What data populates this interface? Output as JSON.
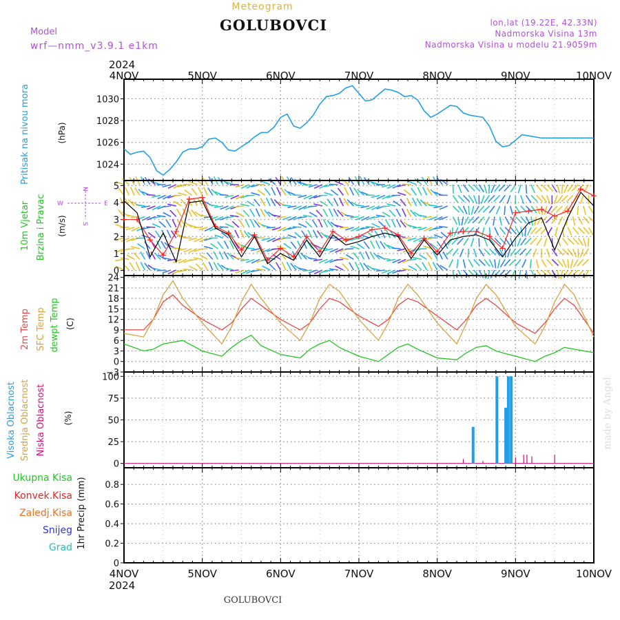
{
  "header": {
    "subtitle": "Meteogram",
    "title": "GOLUBOVCI",
    "model_label": "Model",
    "model_value": "wrf—nmm_v3.9.1 e1km",
    "coords": "lon,lat (19.22E, 42.33N)",
    "altitude": "Nadmorska Visina 13m",
    "model_altitude": "Nadmorska Visina u modelu 21.9059m",
    "year_top": "2024",
    "year_bottom": "2024",
    "footer_station": "GOLUBOVCI",
    "watermark": "made by Angel"
  },
  "colors": {
    "pressure": "#1fa0e6",
    "wind_speed": "#000000",
    "gust": "#ff2020",
    "t2m": "#ee4444",
    "sfc": "#d9a040",
    "dew": "#22c422",
    "cloud_high": "#1fa0e6",
    "cloud_low": "#d01070",
    "grid": "#888888"
  },
  "days": [
    "4NOV",
    "5NOV",
    "6NOV",
    "7NOV",
    "8NOV",
    "9NOV",
    "10NOV"
  ],
  "chart_data": [
    {
      "type": "line",
      "name": "pressure",
      "ylabel": [
        "Pritisak na nivou mora",
        "(hPa)"
      ],
      "yticks": [
        1024,
        1026,
        1028,
        1030
      ],
      "ylim": [
        1022.5,
        1031.8
      ],
      "x": [
        0,
        2,
        4,
        6,
        8,
        10,
        12,
        14,
        16,
        18,
        20,
        22,
        24,
        26,
        28,
        30,
        32,
        34,
        36,
        38,
        40,
        42,
        44,
        46,
        48,
        50,
        52,
        54,
        56,
        58,
        60,
        62,
        64,
        66,
        68,
        70,
        72,
        74,
        76,
        78,
        80,
        82,
        84,
        86,
        88,
        90,
        92,
        94,
        96,
        98,
        100,
        102,
        104,
        106,
        108,
        110,
        112,
        114,
        116,
        118,
        120,
        122,
        124,
        126,
        128,
        130,
        132,
        134,
        136,
        138,
        140,
        142,
        144
      ],
      "series": [
        {
          "values": [
            1025.4,
            1024.9,
            1025.1,
            1025.2,
            1024.6,
            1023.4,
            1023.0,
            1023.5,
            1024.2,
            1025.1,
            1025.4,
            1025.4,
            1025.6,
            1026.3,
            1026.4,
            1026.0,
            1025.3,
            1025.2,
            1025.6,
            1026.0,
            1026.5,
            1026.9,
            1026.9,
            1027.4,
            1028.3,
            1028.6,
            1027.5,
            1027.3,
            1027.8,
            1028.5,
            1029.5,
            1030.2,
            1030.3,
            1030.5,
            1031.0,
            1031.2,
            1030.5,
            1029.8,
            1029.9,
            1030.4,
            1030.9,
            1030.8,
            1030.6,
            1030.2,
            1030.3,
            1029.9,
            1028.9,
            1028.3,
            1028.6,
            1029.0,
            1029.4,
            1029.3,
            1028.7,
            1028.5,
            1028.4,
            1028.3,
            1027.5,
            1026.1,
            1025.6,
            1025.7,
            1026.2,
            1026.7,
            1026.6,
            1026.5,
            1026.4,
            1026.4,
            1026.4,
            1026.4,
            1026.4,
            1026.4,
            1026.4,
            1026.4,
            1026.4
          ]
        }
      ]
    },
    {
      "type": "line",
      "name": "wind",
      "ylabel": [
        "10m Vjetar",
        "Brzina i Pravac",
        "(m/s)"
      ],
      "yticks": [
        0,
        1,
        2,
        3,
        4,
        5
      ],
      "ylim": [
        -0.3,
        5.3
      ],
      "x": [
        0,
        4,
        8,
        12,
        16,
        20,
        24,
        28,
        32,
        36,
        40,
        44,
        48,
        52,
        56,
        60,
        64,
        68,
        72,
        76,
        80,
        84,
        88,
        92,
        96,
        100,
        104,
        108,
        112,
        116,
        120,
        124,
        128,
        132,
        136,
        140,
        144
      ],
      "series": [
        {
          "values": [
            4.1,
            3.4,
            0.8,
            2.2,
            0.5,
            4.0,
            4.1,
            2.5,
            2.1,
            0.8,
            2.0,
            0.4,
            1.0,
            0.6,
            1.8,
            0.8,
            2.1,
            1.5,
            1.7,
            2.0,
            2.2,
            2.0,
            0.7,
            1.8,
            0.9,
            1.8,
            2.0,
            2.1,
            1.8,
            0.8,
            1.9,
            2.8,
            3.1,
            1.2,
            3.1,
            4.6,
            3.8
          ]
        },
        {
          "values": [
            3.0,
            3.0,
            1.8,
            0.9,
            2.3,
            4.2,
            4.3,
            2.6,
            2.2,
            1.2,
            2.1,
            0.6,
            1.3,
            0.8,
            2.0,
            1.1,
            2.3,
            1.8,
            2.0,
            2.4,
            2.5,
            2.1,
            1.0,
            1.9,
            1.1,
            2.2,
            2.3,
            2.3,
            2.0,
            1.3,
            3.4,
            3.5,
            3.6,
            3.2,
            3.5,
            4.8,
            4.4
          ]
        }
      ],
      "direction_labels": [
        "N",
        "W",
        "E",
        "S"
      ]
    },
    {
      "type": "line",
      "name": "temperature",
      "ylabel": [
        "2m Temp",
        "SFC Temp",
        "dewpt Temp",
        "(C)"
      ],
      "yticks": [
        -3,
        0,
        3,
        6,
        9,
        12,
        15,
        18,
        21,
        24
      ],
      "ylim": [
        -3,
        24.5
      ],
      "x": [
        0,
        6,
        9,
        12,
        15,
        18,
        24,
        30,
        33,
        36,
        39,
        42,
        48,
        54,
        57,
        60,
        63,
        66,
        72,
        78,
        81,
        84,
        87,
        90,
        96,
        102,
        105,
        108,
        111,
        114,
        120,
        126,
        129,
        132,
        135,
        138,
        144
      ],
      "series": [
        {
          "name": "2m Temp",
          "values": [
            9,
            9,
            12,
            17,
            19,
            16,
            12,
            9,
            11,
            15,
            18,
            16,
            12,
            9,
            11,
            15,
            18,
            17,
            13,
            10,
            12,
            16,
            18,
            17,
            13,
            9,
            12,
            16,
            18,
            16,
            11,
            8,
            11,
            15,
            18,
            16,
            8
          ]
        },
        {
          "name": "SFC Temp",
          "values": [
            8,
            7,
            12,
            19,
            23,
            18,
            11,
            5,
            10,
            17,
            22,
            18,
            11,
            6,
            11,
            18,
            22,
            20,
            12,
            6,
            11,
            18,
            22,
            19,
            11,
            5,
            11,
            18,
            22,
            19,
            10,
            5,
            10,
            17,
            22,
            19,
            7
          ]
        },
        {
          "name": "dewpt Temp",
          "values": [
            5,
            3,
            3.5,
            5,
            5.5,
            6,
            3,
            1.5,
            4,
            6,
            7.5,
            4.5,
            2,
            1,
            3.5,
            5,
            6,
            4,
            1.5,
            0,
            2,
            4,
            5,
            3.5,
            1,
            0.5,
            2.5,
            4,
            4.5,
            3,
            1.5,
            0,
            1.5,
            2.5,
            4,
            3.5,
            2.5
          ]
        }
      ]
    },
    {
      "type": "bar",
      "name": "clouds",
      "ylabel": [
        "Visoka Oblacnost",
        "Srednja Oblacnost",
        "Niska Oblacnost",
        "(%)"
      ],
      "yticks": [
        0,
        25,
        50,
        75,
        100
      ],
      "ylim": [
        -5,
        105
      ],
      "series": [
        {
          "name": "Visoka Oblacnost",
          "x": [
            107,
            114.3,
            117,
            117.8,
            118.7
          ],
          "values": [
            42,
            100,
            64,
            100,
            100
          ]
        },
        {
          "name": "Niska Oblacnost",
          "x": [
            104,
            110,
            120,
            122.5,
            123.5,
            125,
            132
          ],
          "values": [
            5,
            3,
            7,
            10,
            10,
            8,
            10
          ]
        }
      ]
    },
    {
      "type": "bar",
      "name": "precipitation",
      "ylabel": [
        "1hr Precip (mm)"
      ],
      "yticks": [
        0,
        0.2,
        0.4,
        0.6,
        0.8
      ],
      "ylim": [
        0,
        0.97
      ],
      "legend": [
        "Ukupna Kisa",
        "Konvek.Kisa",
        "Zaledj.Kisa",
        "Snijeg",
        "Grad"
      ],
      "legend_colors": [
        "#22c422",
        "#ee2020",
        "#ee7020",
        "#3030e0",
        "#20c0c0"
      ],
      "values": []
    }
  ]
}
